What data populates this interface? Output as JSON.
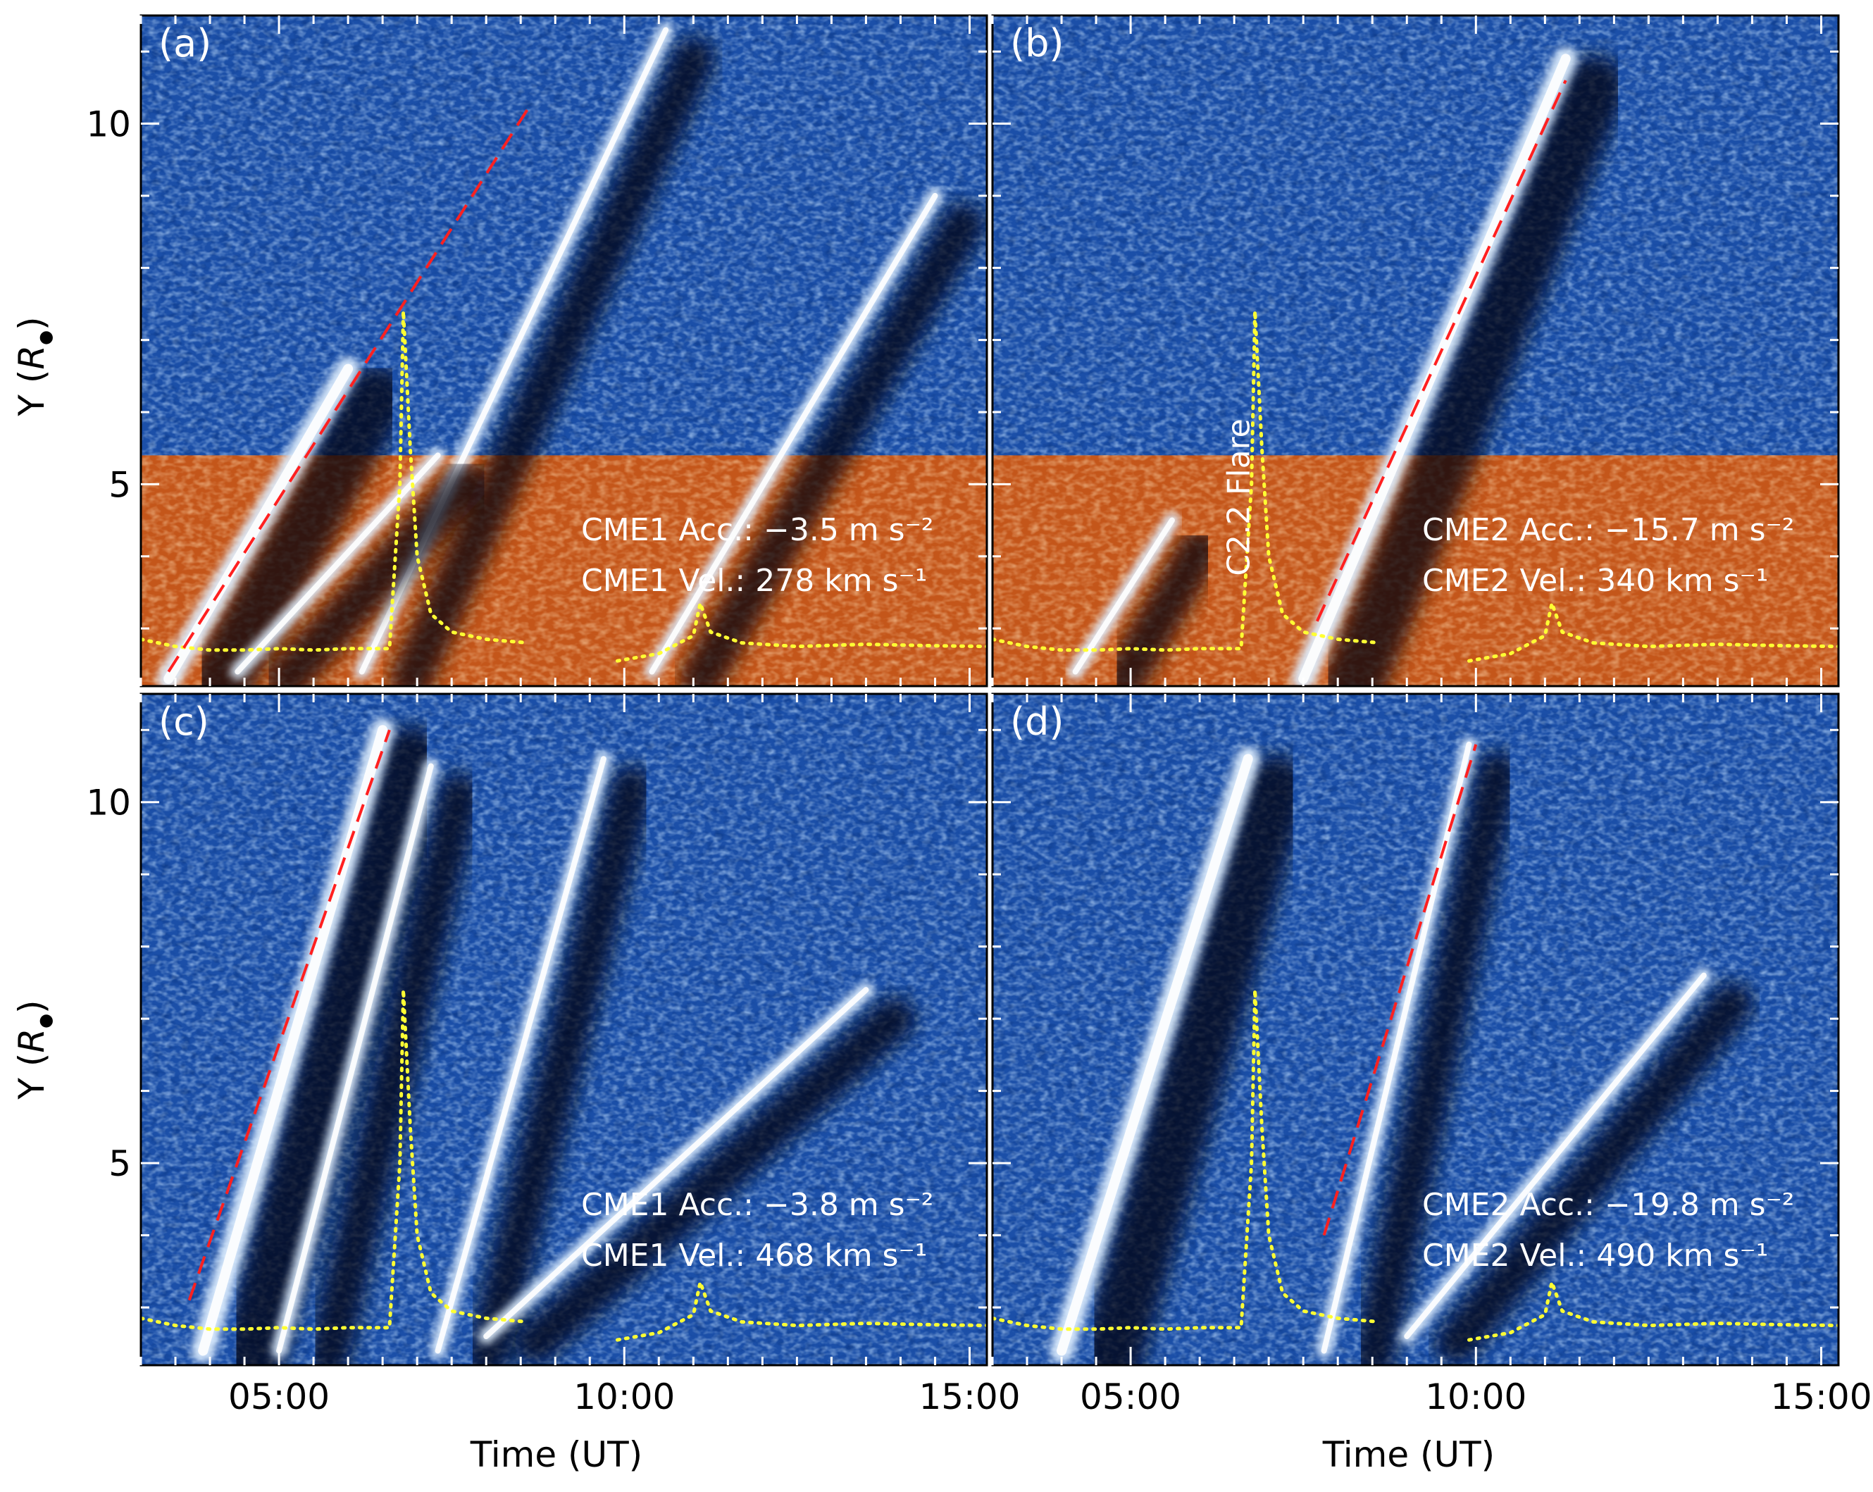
{
  "figure": {
    "x_title": "Time (UT)",
    "y_title_main": "Y (",
    "y_title_symbol": "R",
    "y_title_sub": "●",
    "y_title_close": ")"
  },
  "chart_data": [
    {
      "panel": "(a)",
      "type": "heatmap",
      "description_visible": false,
      "xlim_hours": [
        3,
        15.25
      ],
      "ylim": [
        2.2,
        11.5
      ],
      "x_ticks": [
        {
          "value": 5,
          "label": "05:00"
        },
        {
          "value": 10,
          "label": "10:00"
        },
        {
          "value": 15,
          "label": "15:00"
        }
      ],
      "y_ticks": [
        {
          "value": 5,
          "label": "5"
        },
        {
          "value": 10,
          "label": "10"
        }
      ],
      "inner_region_top": 5.4,
      "fit_line": {
        "t0": 3.4,
        "y0": 2.4,
        "t1": 8.6,
        "y1": 10.2
      },
      "annotations": [
        "CME1 Acc.: −3.5 m s⁻²",
        "CME1 Vel.: 278 km s⁻¹"
      ],
      "bright_tracks": [
        {
          "t0": 3.4,
          "y0": 2.3,
          "t1": 6.0,
          "y1": 6.6
        },
        {
          "t0": 6.2,
          "y0": 2.4,
          "t1": 10.6,
          "y1": 11.3
        },
        {
          "t0": 4.4,
          "y0": 2.4,
          "t1": 7.3,
          "y1": 5.4
        },
        {
          "t0": 10.4,
          "y0": 2.4,
          "t1": 14.5,
          "y1": 9.0
        }
      ]
    },
    {
      "panel": "(b)",
      "type": "heatmap",
      "xlim_hours": [
        3,
        15.25
      ],
      "ylim": [
        2.2,
        11.5
      ],
      "x_ticks": [
        {
          "value": 5,
          "label": "05:00"
        },
        {
          "value": 10,
          "label": "10:00"
        },
        {
          "value": 15,
          "label": "15:00"
        }
      ],
      "y_ticks": [
        {
          "value": 5,
          "label": "5"
        },
        {
          "value": 10,
          "label": "10"
        }
      ],
      "inner_region_top": 5.4,
      "fit_line": {
        "t0": 7.7,
        "y0": 3.1,
        "t1": 11.3,
        "y1": 10.6
      },
      "annotations": [
        "CME2 Acc.: −15.7 m s⁻²",
        "CME2 Vel.: 340 km s⁻¹"
      ],
      "flare_label": "C2.2 Flare",
      "bright_tracks": [
        {
          "t0": 7.5,
          "y0": 2.3,
          "t1": 11.3,
          "y1": 10.9
        },
        {
          "t0": 4.2,
          "y0": 2.4,
          "t1": 5.6,
          "y1": 4.5
        }
      ]
    },
    {
      "panel": "(c)",
      "type": "heatmap",
      "xlim_hours": [
        3,
        15.25
      ],
      "ylim": [
        2.2,
        11.5
      ],
      "x_ticks": [
        {
          "value": 5,
          "label": "05:00"
        },
        {
          "value": 10,
          "label": "10:00"
        },
        {
          "value": 15,
          "label": "15:00"
        }
      ],
      "y_ticks": [
        {
          "value": 5,
          "label": "5"
        },
        {
          "value": 10,
          "label": "10"
        }
      ],
      "fit_line": {
        "t0": 3.7,
        "y0": 3.1,
        "t1": 6.6,
        "y1": 11.0
      },
      "annotations": [
        "CME1 Acc.: −3.8 m s⁻²",
        "CME1 Vel.: 468 km s⁻¹"
      ],
      "bright_tracks": [
        {
          "t0": 3.9,
          "y0": 2.4,
          "t1": 6.5,
          "y1": 11.0
        },
        {
          "t0": 5.0,
          "y0": 2.4,
          "t1": 7.2,
          "y1": 10.5
        },
        {
          "t0": 7.3,
          "y0": 2.4,
          "t1": 9.7,
          "y1": 10.6
        },
        {
          "t0": 8.0,
          "y0": 2.6,
          "t1": 13.5,
          "y1": 7.4
        }
      ]
    },
    {
      "panel": "(d)",
      "type": "heatmap",
      "xlim_hours": [
        3,
        15.25
      ],
      "ylim": [
        2.2,
        11.5
      ],
      "x_ticks": [
        {
          "value": 5,
          "label": "05:00"
        },
        {
          "value": 10,
          "label": "10:00"
        },
        {
          "value": 15,
          "label": "15:00"
        }
      ],
      "y_ticks": [
        {
          "value": 5,
          "label": "5"
        },
        {
          "value": 10,
          "label": "10"
        }
      ],
      "fit_line": {
        "t0": 7.8,
        "y0": 4.0,
        "t1": 10.0,
        "y1": 10.8
      },
      "annotations": [
        "CME2 Acc.: −19.8 m s⁻²",
        "CME2 Vel.: 490 km s⁻¹"
      ],
      "bright_tracks": [
        {
          "t0": 4.0,
          "y0": 2.4,
          "t1": 6.7,
          "y1": 10.6
        },
        {
          "t0": 7.8,
          "y0": 2.4,
          "t1": 9.9,
          "y1": 10.8
        },
        {
          "t0": 9.0,
          "y0": 2.6,
          "t1": 13.3,
          "y1": 7.6
        }
      ]
    }
  ],
  "goes_curve": {
    "description": "dotted yellow GOES flux overlay shared by all panels (relative units)",
    "points": [
      [
        3.0,
        2.85
      ],
      [
        3.5,
        2.75
      ],
      [
        4.0,
        2.7
      ],
      [
        4.5,
        2.7
      ],
      [
        5.0,
        2.72
      ],
      [
        5.5,
        2.7
      ],
      [
        6.0,
        2.72
      ],
      [
        6.6,
        2.72
      ],
      [
        6.75,
        5.0
      ],
      [
        6.8,
        7.4
      ],
      [
        6.9,
        5.5
      ],
      [
        7.0,
        4.0
      ],
      [
        7.2,
        3.2
      ],
      [
        7.5,
        2.95
      ],
      [
        8.0,
        2.85
      ],
      [
        8.6,
        2.8
      ],
      [
        null,
        null
      ],
      [
        9.9,
        2.55
      ],
      [
        10.5,
        2.65
      ],
      [
        11.0,
        2.9
      ],
      [
        11.1,
        3.35
      ],
      [
        11.25,
        2.95
      ],
      [
        11.7,
        2.8
      ],
      [
        12.5,
        2.75
      ],
      [
        13.5,
        2.78
      ],
      [
        14.5,
        2.76
      ],
      [
        15.25,
        2.75
      ]
    ]
  }
}
